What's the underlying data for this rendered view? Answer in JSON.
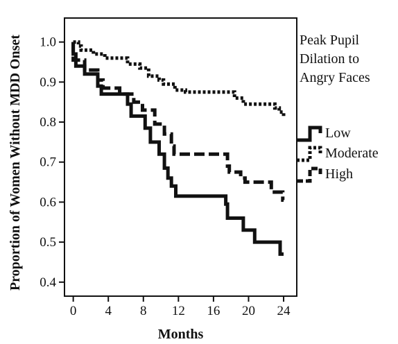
{
  "chart_data": {
    "type": "line",
    "xlabel": "Months",
    "ylabel": "Proportion of Women Without MDD Onset",
    "xlim": [
      -1,
      25.5
    ],
    "ylim": [
      0.365,
      1.06
    ],
    "x_ticks": [
      "0",
      "4",
      "8",
      "12",
      "16",
      "20",
      "24"
    ],
    "y_ticks": [
      "0.4",
      "0.5",
      "0.6",
      "0.7",
      "0.8",
      "0.9",
      "1.0"
    ],
    "grid": false,
    "legend": {
      "title_lines": [
        "Peak Pupil",
        "Dilation to",
        "Angry Faces"
      ],
      "position": "right"
    },
    "series": [
      {
        "name": "Low",
        "style": "solid",
        "color": "#111111",
        "steps": [
          [
            0,
            1.0
          ],
          [
            0,
            0.97
          ],
          [
            0.3,
            0.94
          ],
          [
            1.3,
            0.92
          ],
          [
            2.8,
            0.89
          ],
          [
            3.2,
            0.87
          ],
          [
            6.2,
            0.845
          ],
          [
            6.6,
            0.815
          ],
          [
            8.2,
            0.785
          ],
          [
            8.8,
            0.75
          ],
          [
            9.8,
            0.72
          ],
          [
            10.4,
            0.685
          ],
          [
            10.8,
            0.66
          ],
          [
            11.2,
            0.64
          ],
          [
            11.7,
            0.615
          ],
          [
            17.4,
            0.595
          ],
          [
            17.6,
            0.56
          ],
          [
            19.4,
            0.53
          ],
          [
            20.7,
            0.5
          ],
          [
            23.6,
            0.47
          ],
          [
            24,
            0.47
          ]
        ]
      },
      {
        "name": "Moderate",
        "style": "dotted",
        "color": "#111111",
        "steps": [
          [
            0,
            1.0
          ],
          [
            0.6,
            0.99
          ],
          [
            0.9,
            0.98
          ],
          [
            2.3,
            0.97
          ],
          [
            3.6,
            0.96
          ],
          [
            6.2,
            0.945
          ],
          [
            7.6,
            0.935
          ],
          [
            8.6,
            0.915
          ],
          [
            9.8,
            0.905
          ],
          [
            10.3,
            0.895
          ],
          [
            11.6,
            0.88
          ],
          [
            12.8,
            0.875
          ],
          [
            18.4,
            0.86
          ],
          [
            19.4,
            0.845
          ],
          [
            23.0,
            0.835
          ],
          [
            23.5,
            0.825
          ],
          [
            24,
            0.815
          ]
        ]
      },
      {
        "name": "High",
        "style": "dashed",
        "color": "#111111",
        "steps": [
          [
            0,
            1.0
          ],
          [
            0,
            0.955
          ],
          [
            1.3,
            0.93
          ],
          [
            2.8,
            0.905
          ],
          [
            3.4,
            0.885
          ],
          [
            5.3,
            0.87
          ],
          [
            6.9,
            0.85
          ],
          [
            7.9,
            0.83
          ],
          [
            9.3,
            0.795
          ],
          [
            10.4,
            0.77
          ],
          [
            11.2,
            0.74
          ],
          [
            11.5,
            0.72
          ],
          [
            17.6,
            0.69
          ],
          [
            17.8,
            0.675
          ],
          [
            19.1,
            0.66
          ],
          [
            19.6,
            0.65
          ],
          [
            22.6,
            0.625
          ],
          [
            23.9,
            0.605
          ],
          [
            24,
            0.605
          ]
        ]
      }
    ]
  }
}
